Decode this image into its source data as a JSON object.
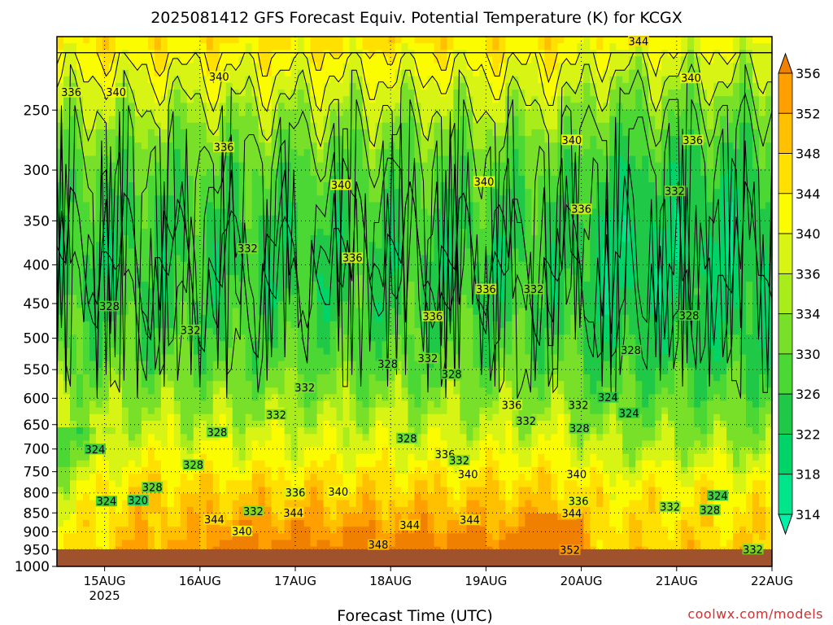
{
  "chart_data": {
    "type": "heatmap",
    "title": "2025081412 GFS Forecast Equiv. Potential Temperature (K) for KCGX",
    "xlabel": "Forecast Time (UTC)",
    "ylabel": "",
    "credit": "coolwx.com/models",
    "x_ticks": [
      {
        "label": "15AUG",
        "sub": "2025",
        "t": 0.5
      },
      {
        "label": "16AUG",
        "sub": "",
        "t": 1.5
      },
      {
        "label": "17AUG",
        "sub": "",
        "t": 2.5
      },
      {
        "label": "18AUG",
        "sub": "",
        "t": 3.5
      },
      {
        "label": "19AUG",
        "sub": "",
        "t": 4.5
      },
      {
        "label": "20AUG",
        "sub": "",
        "t": 5.5
      },
      {
        "label": "21AUG",
        "sub": "",
        "t": 6.5
      },
      {
        "label": "22AUG",
        "sub": "",
        "t": 7.5
      }
    ],
    "xlim": [
      0,
      7.5
    ],
    "y_ticks": [
      250,
      300,
      350,
      400,
      450,
      500,
      550,
      600,
      650,
      700,
      750,
      800,
      850,
      900,
      950,
      1000
    ],
    "ylim_hPa": [
      200,
      1000
    ],
    "y_scale": "log",
    "grid": true,
    "colorbar": {
      "levels": [
        314,
        318,
        322,
        326,
        330,
        334,
        336,
        340,
        344,
        348,
        352,
        356
      ],
      "colors": [
        "#00f0a8",
        "#00e48a",
        "#00d468",
        "#20c848",
        "#4cd834",
        "#78e028",
        "#a8ec1c",
        "#d8f414",
        "#fcfc00",
        "#ffe000",
        "#ffc000",
        "#ffa000",
        "#f08000"
      ],
      "extend": "both"
    },
    "contour_labels": [
      {
        "t": 0.15,
        "p": 237,
        "v": 336
      },
      {
        "t": 0.62,
        "p": 237,
        "v": 340
      },
      {
        "t": 1.7,
        "p": 226,
        "v": 340
      },
      {
        "t": 1.75,
        "p": 280,
        "v": 336
      },
      {
        "t": 2.0,
        "p": 381,
        "v": 332
      },
      {
        "t": 2.98,
        "p": 314,
        "v": 340
      },
      {
        "t": 3.1,
        "p": 392,
        "v": 336
      },
      {
        "t": 0.55,
        "p": 454,
        "v": 328
      },
      {
        "t": 1.4,
        "p": 488,
        "v": 332
      },
      {
        "t": 2.6,
        "p": 581,
        "v": 332
      },
      {
        "t": 2.3,
        "p": 631,
        "v": 332
      },
      {
        "t": 1.68,
        "p": 666,
        "v": 328
      },
      {
        "t": 1.43,
        "p": 735,
        "v": 328
      },
      {
        "t": 0.4,
        "p": 701,
        "v": 324
      },
      {
        "t": 0.52,
        "p": 821,
        "v": 324
      },
      {
        "t": 0.85,
        "p": 819,
        "v": 320
      },
      {
        "t": 1.0,
        "p": 787,
        "v": 328
      },
      {
        "t": 1.65,
        "p": 868,
        "v": 344
      },
      {
        "t": 2.06,
        "p": 846,
        "v": 332
      },
      {
        "t": 1.94,
        "p": 899,
        "v": 340
      },
      {
        "t": 2.5,
        "p": 800,
        "v": 336
      },
      {
        "t": 2.48,
        "p": 850,
        "v": 344
      },
      {
        "t": 2.95,
        "p": 798,
        "v": 340
      },
      {
        "t": 3.37,
        "p": 937,
        "v": 348
      },
      {
        "t": 3.7,
        "p": 883,
        "v": 344
      },
      {
        "t": 3.47,
        "p": 541,
        "v": 328
      },
      {
        "t": 3.94,
        "p": 468,
        "v": 336
      },
      {
        "t": 3.89,
        "p": 532,
        "v": 332
      },
      {
        "t": 4.14,
        "p": 558,
        "v": 328
      },
      {
        "t": 3.67,
        "p": 678,
        "v": 328
      },
      {
        "t": 4.07,
        "p": 712,
        "v": 336
      },
      {
        "t": 4.22,
        "p": 725,
        "v": 332
      },
      {
        "t": 4.31,
        "p": 756,
        "v": 340
      },
      {
        "t": 4.33,
        "p": 869,
        "v": 344
      },
      {
        "t": 4.48,
        "p": 311,
        "v": 340
      },
      {
        "t": 4.5,
        "p": 431,
        "v": 336
      },
      {
        "t": 4.77,
        "p": 613,
        "v": 336
      },
      {
        "t": 4.92,
        "p": 643,
        "v": 332
      },
      {
        "t": 5.0,
        "p": 431,
        "v": 332
      },
      {
        "t": 5.47,
        "p": 613,
        "v": 332
      },
      {
        "t": 5.48,
        "p": 658,
        "v": 328
      },
      {
        "t": 5.78,
        "p": 599,
        "v": 324
      },
      {
        "t": 6.02,
        "p": 519,
        "v": 328
      },
      {
        "t": 5.45,
        "p": 756,
        "v": 340
      },
      {
        "t": 5.47,
        "p": 821,
        "v": 336
      },
      {
        "t": 5.4,
        "p": 852,
        "v": 344
      },
      {
        "t": 5.38,
        "p": 952,
        "v": 352
      },
      {
        "t": 5.5,
        "p": 338,
        "v": 336
      },
      {
        "t": 5.4,
        "p": 274,
        "v": 340
      },
      {
        "t": 6.1,
        "p": 203,
        "v": 344
      },
      {
        "t": 6.65,
        "p": 227,
        "v": 340
      },
      {
        "t": 6.67,
        "p": 274,
        "v": 336
      },
      {
        "t": 6.48,
        "p": 320,
        "v": 332
      },
      {
        "t": 6.63,
        "p": 467,
        "v": 328
      },
      {
        "t": 6.0,
        "p": 628,
        "v": 324
      },
      {
        "t": 6.43,
        "p": 835,
        "v": 332
      },
      {
        "t": 6.85,
        "p": 843,
        "v": 328
      },
      {
        "t": 6.93,
        "p": 807,
        "v": 324
      },
      {
        "t": 7.3,
        "p": 950,
        "v": 332
      }
    ]
  }
}
